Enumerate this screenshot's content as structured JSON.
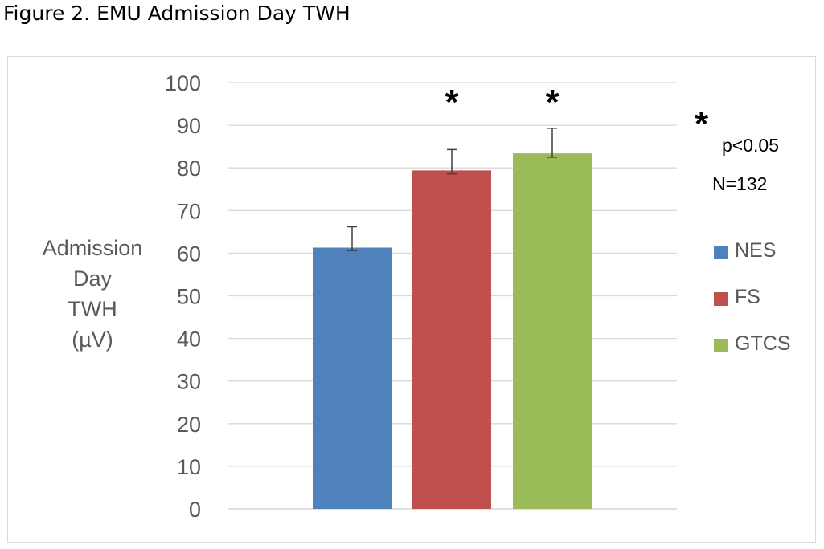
{
  "figure_title": "Figure 2. EMU Admission Day TWH",
  "chart_data": {
    "type": "bar",
    "ylabel_lines": [
      "Admission",
      "Day",
      "TWH",
      "(µV)"
    ],
    "ylim": [
      0,
      100
    ],
    "yticks": [
      0,
      10,
      20,
      30,
      40,
      50,
      60,
      70,
      80,
      90,
      100
    ],
    "grid": true,
    "legend_position": "right",
    "series": [
      {
        "name": "NES",
        "value": 61.3,
        "error_low": 60.6,
        "error_high": 66.2,
        "color": "#4f81bd",
        "significant": false
      },
      {
        "name": "FS",
        "value": 79.4,
        "error_low": 78.6,
        "error_high": 84.3,
        "color": "#c0504d",
        "significant": true
      },
      {
        "name": "GTCS",
        "value": 83.4,
        "error_low": 82.5,
        "error_high": 89.3,
        "color": "#9bbb59",
        "significant": true
      }
    ],
    "significance_marker": "*",
    "annotations": {
      "star": "*",
      "p_value": "p<0.05",
      "n": "N=132"
    }
  }
}
